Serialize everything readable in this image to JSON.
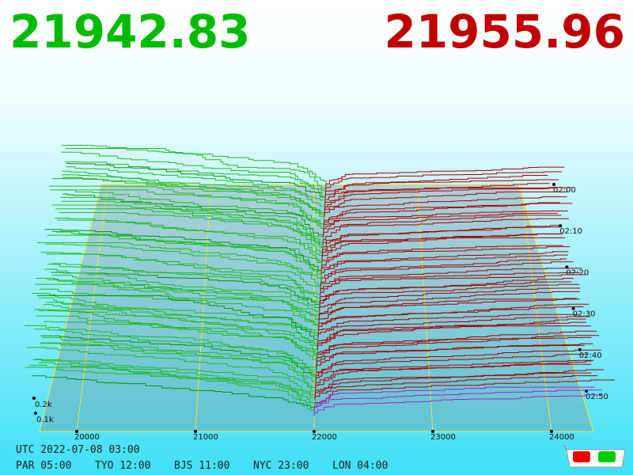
{
  "header": {
    "bid": "21942.83",
    "ask": "21955.96"
  },
  "price_axis": {
    "ticks": [
      20000,
      21000,
      22000,
      23000,
      24000
    ]
  },
  "time_axis": {
    "ticks": [
      "02:00",
      "02:10",
      "02:20",
      "02:30",
      "02:40",
      "02:50"
    ]
  },
  "depth_axis": {
    "ticks": [
      "0.2k",
      "0.1k"
    ]
  },
  "footer": {
    "utc": "UTC 2022-07-08 03:00",
    "zones": [
      "PAR 05:00",
      "TYO 12:00",
      "BJS 11:00",
      "NYC 23:00",
      "LON 04:00"
    ]
  }
}
